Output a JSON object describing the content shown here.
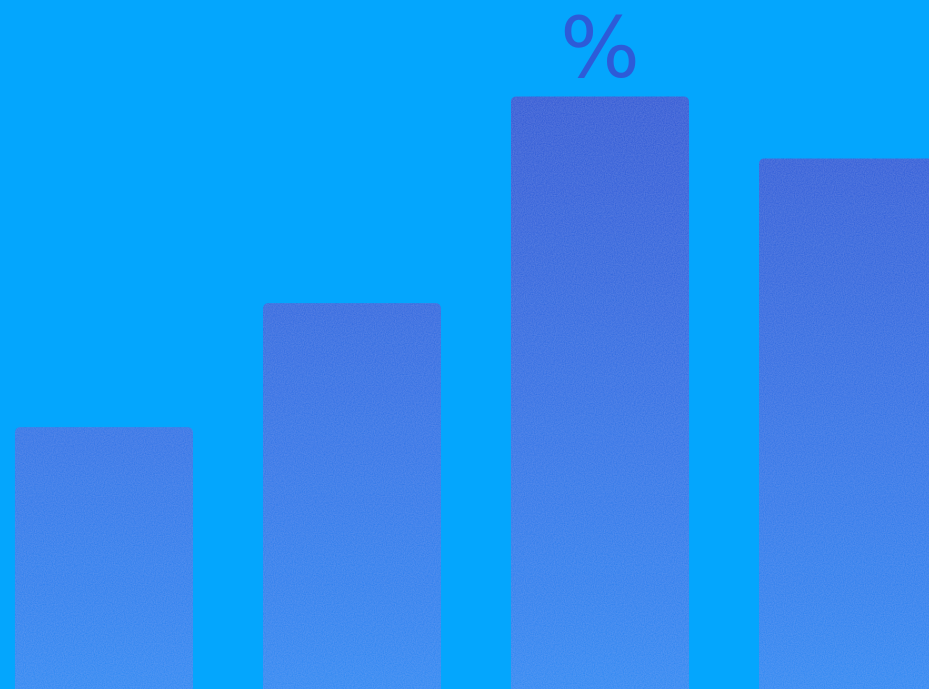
{
  "symbol": "%",
  "colors": {
    "background": "#04a6fd",
    "bar_top_dark": "#2448cf",
    "bar_bottom_light": "#1e86f2",
    "symbol": "#2d5bd8"
  },
  "bars": [
    {
      "name": "bar-1",
      "level": 0.38
    },
    {
      "name": "bar-2",
      "level": 0.56
    },
    {
      "name": "bar-3",
      "level": 0.86
    },
    {
      "name": "bar-4",
      "level": 0.77
    }
  ]
}
